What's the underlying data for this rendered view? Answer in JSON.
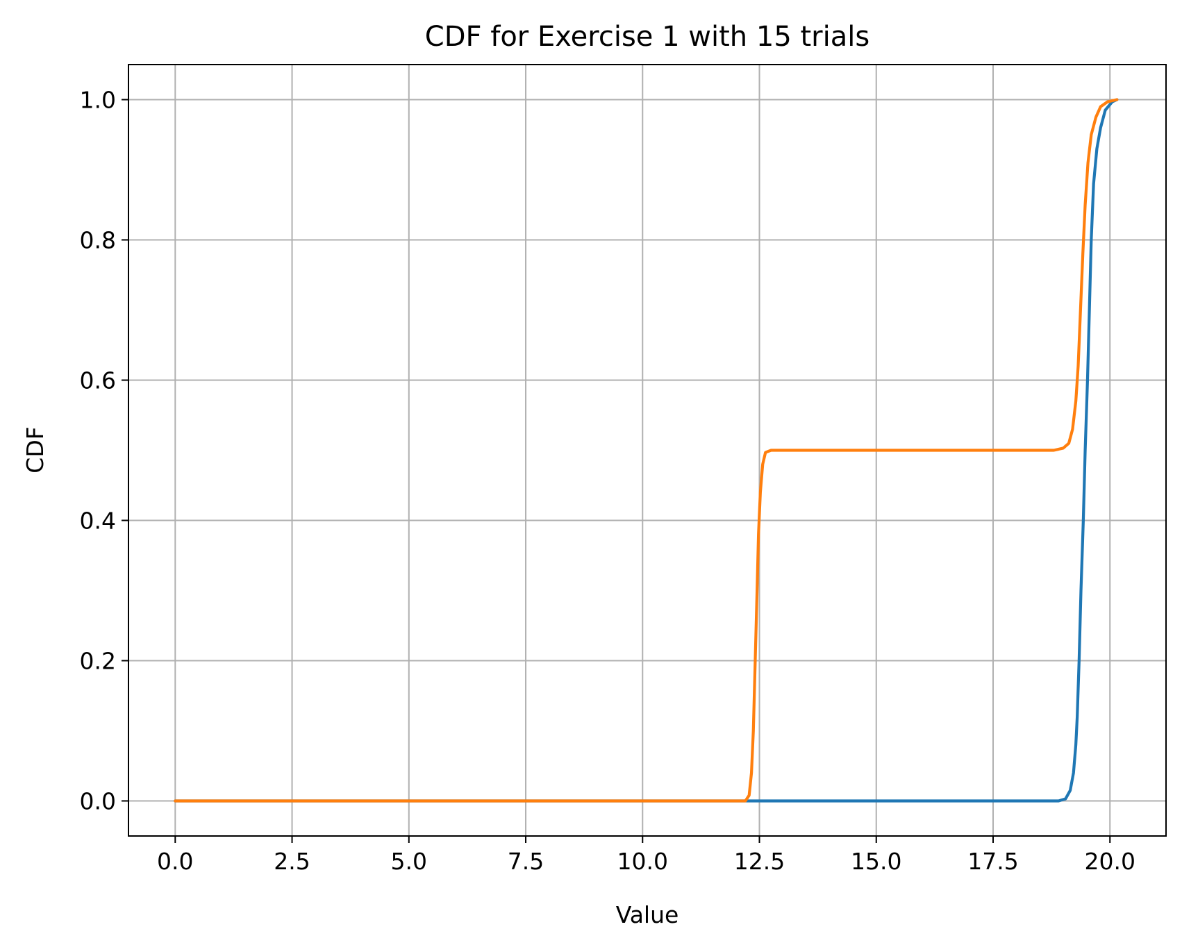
{
  "chart_data": {
    "type": "line",
    "title": "CDF for Exercise 1 with 15 trials",
    "xlabel": "Value",
    "ylabel": "CDF",
    "xlim": [
      -1.0,
      21.2
    ],
    "ylim": [
      -0.05,
      1.05
    ],
    "xticks": [
      "0.0",
      "2.5",
      "5.0",
      "7.5",
      "10.0",
      "12.5",
      "15.0",
      "17.5",
      "20.0"
    ],
    "xtick_values": [
      0,
      2.5,
      5,
      7.5,
      10,
      12.5,
      15,
      17.5,
      20
    ],
    "yticks": [
      "0.0",
      "0.2",
      "0.4",
      "0.6",
      "0.8",
      "1.0"
    ],
    "ytick_values": [
      0,
      0.2,
      0.4,
      0.6,
      0.8,
      1.0
    ],
    "grid": true,
    "legend": "none",
    "series": [
      {
        "color": "#1f77b4",
        "points": [
          [
            0.0,
            0.0
          ],
          [
            12.2,
            0.0
          ],
          [
            18.9,
            0.0
          ],
          [
            19.05,
            0.003
          ],
          [
            19.15,
            0.015
          ],
          [
            19.22,
            0.04
          ],
          [
            19.27,
            0.08
          ],
          [
            19.3,
            0.12
          ],
          [
            19.34,
            0.2
          ],
          [
            19.38,
            0.3
          ],
          [
            19.43,
            0.4
          ],
          [
            19.47,
            0.5
          ],
          [
            19.52,
            0.6
          ],
          [
            19.56,
            0.7
          ],
          [
            19.6,
            0.8
          ],
          [
            19.65,
            0.88
          ],
          [
            19.72,
            0.93
          ],
          [
            19.8,
            0.96
          ],
          [
            19.9,
            0.985
          ],
          [
            20.05,
            0.997
          ],
          [
            20.15,
            1.0
          ]
        ]
      },
      {
        "color": "#ff7f0e",
        "points": [
          [
            0.0,
            0.0
          ],
          [
            12.2,
            0.0
          ],
          [
            12.28,
            0.008
          ],
          [
            12.33,
            0.04
          ],
          [
            12.37,
            0.1
          ],
          [
            12.41,
            0.2
          ],
          [
            12.45,
            0.3
          ],
          [
            12.48,
            0.38
          ],
          [
            12.52,
            0.44
          ],
          [
            12.57,
            0.48
          ],
          [
            12.63,
            0.497
          ],
          [
            12.75,
            0.5
          ],
          [
            18.8,
            0.5
          ],
          [
            19.0,
            0.503
          ],
          [
            19.12,
            0.51
          ],
          [
            19.2,
            0.53
          ],
          [
            19.27,
            0.57
          ],
          [
            19.32,
            0.62
          ],
          [
            19.37,
            0.7
          ],
          [
            19.42,
            0.78
          ],
          [
            19.47,
            0.85
          ],
          [
            19.53,
            0.91
          ],
          [
            19.6,
            0.95
          ],
          [
            19.7,
            0.975
          ],
          [
            19.8,
            0.99
          ],
          [
            19.95,
            0.997
          ],
          [
            20.15,
            1.0
          ]
        ]
      }
    ]
  }
}
